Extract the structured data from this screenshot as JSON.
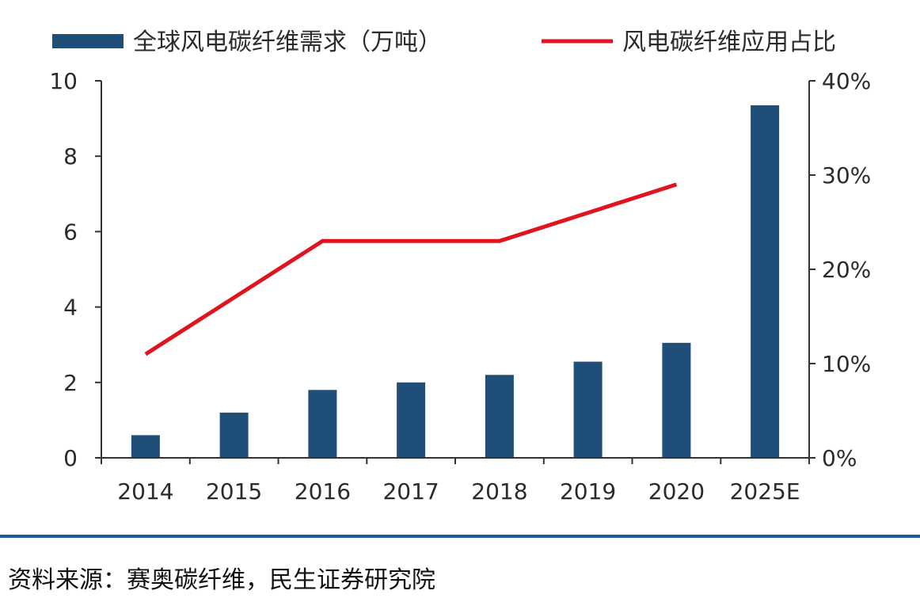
{
  "chart_data": {
    "type": "bar",
    "categories": [
      "2014",
      "2015",
      "2016",
      "2017",
      "2018",
      "2019",
      "2020",
      "2025E"
    ],
    "series": [
      {
        "name": "全球风电碳纤维需求（万吨）",
        "type": "bar",
        "axis": "left",
        "color": "#1f4e79",
        "values": [
          0.6,
          1.2,
          1.8,
          2.0,
          2.2,
          2.55,
          3.05,
          9.35
        ]
      },
      {
        "name": "风电碳纤维应用占比",
        "type": "line",
        "axis": "right",
        "color": "#e0141e",
        "values": [
          0.11,
          0.17,
          0.23,
          0.23,
          0.23,
          0.26,
          0.29,
          null
        ]
      }
    ],
    "y_left": {
      "range": [
        0,
        10
      ],
      "ticks": [
        "0",
        "2",
        "4",
        "6",
        "8",
        "10"
      ]
    },
    "y_right": {
      "range": [
        0,
        0.4
      ],
      "ticks": [
        "0%",
        "10%",
        "20%",
        "30%",
        "40%"
      ]
    },
    "grid": false,
    "legend_position": "top"
  },
  "source_note": "资料来源：赛奥碳纤维，民生证券研究院",
  "colors": {
    "divider": "#1f5a96",
    "axis": "#333333"
  }
}
